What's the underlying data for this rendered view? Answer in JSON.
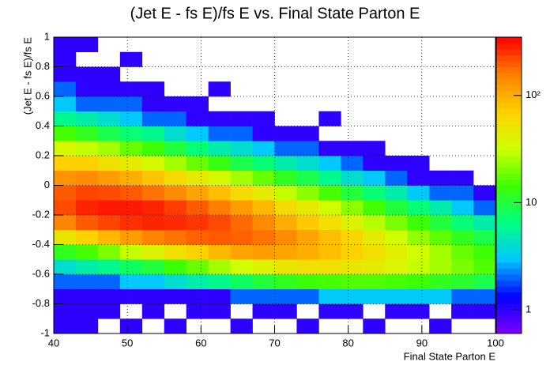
{
  "chart_data": {
    "type": "heatmap",
    "title": "(Jet E - fs E)/fs E vs. Final State Parton E",
    "x_label": "Final State Parton E",
    "y_label": "(Jet E - fs E)/fs E",
    "xbins": [
      40,
      43,
      46,
      49,
      52,
      55,
      58,
      61,
      64,
      67,
      70,
      73,
      76,
      79,
      82,
      85,
      88,
      91,
      94,
      97,
      100
    ],
    "ybins": [
      -1,
      -0.9,
      -0.8,
      -0.7,
      -0.6,
      -0.5,
      -0.4,
      -0.3,
      -0.2,
      -0.1,
      0,
      0.1,
      0.2,
      0.3,
      0.4,
      0.5,
      0.6,
      0.7,
      0.8,
      0.9,
      1
    ],
    "z": [
      [
        1,
        1,
        1,
        2,
        4,
        12,
        50,
        150,
        220,
        200,
        130,
        70,
        35,
        15,
        6,
        3,
        2,
        1,
        1,
        1
      ],
      [
        1,
        1,
        1,
        2,
        5,
        15,
        70,
        200,
        280,
        230,
        140,
        70,
        30,
        12,
        5,
        2,
        1,
        1,
        0,
        1
      ],
      [
        0,
        1,
        1,
        2,
        6,
        20,
        90,
        230,
        300,
        220,
        120,
        55,
        25,
        9,
        4,
        2,
        1,
        1,
        0,
        0
      ],
      [
        1,
        0,
        1,
        3,
        8,
        30,
        120,
        260,
        300,
        200,
        100,
        45,
        18,
        7,
        3,
        2,
        1,
        0,
        1,
        0
      ],
      [
        0,
        1,
        1,
        3,
        10,
        40,
        150,
        280,
        280,
        170,
        80,
        35,
        14,
        6,
        2,
        1,
        1,
        0,
        0,
        0
      ],
      [
        1,
        0,
        1,
        4,
        14,
        55,
        170,
        270,
        240,
        140,
        60,
        25,
        10,
        4,
        2,
        1,
        0,
        0,
        0,
        0
      ],
      [
        0,
        1,
        1,
        5,
        18,
        70,
        190,
        250,
        200,
        110,
        45,
        18,
        7,
        3,
        1,
        1,
        0,
        0,
        0,
        0
      ],
      [
        0,
        1,
        1,
        6,
        25,
        90,
        200,
        220,
        160,
        85,
        35,
        13,
        5,
        2,
        1,
        0,
        1,
        0,
        0,
        0
      ],
      [
        1,
        0,
        2,
        8,
        32,
        110,
        190,
        180,
        120,
        60,
        25,
        9,
        4,
        2,
        1,
        0,
        0,
        0,
        0,
        0
      ],
      [
        0,
        1,
        2,
        10,
        40,
        120,
        170,
        140,
        90,
        45,
        18,
        7,
        3,
        1,
        1,
        0,
        0,
        0,
        0,
        0
      ],
      [
        0,
        1,
        2,
        12,
        50,
        110,
        140,
        100,
        60,
        30,
        12,
        5,
        2,
        1,
        0,
        0,
        0,
        0,
        0,
        0
      ],
      [
        1,
        0,
        2,
        14,
        55,
        100,
        110,
        75,
        45,
        22,
        9,
        4,
        2,
        1,
        0,
        0,
        0,
        0,
        0,
        0
      ],
      [
        0,
        1,
        3,
        15,
        55,
        85,
        85,
        55,
        32,
        15,
        6,
        3,
        1,
        0,
        1,
        0,
        0,
        0,
        0,
        0
      ],
      [
        0,
        1,
        3,
        16,
        50,
        70,
        65,
        40,
        22,
        10,
        4,
        2,
        1,
        0,
        0,
        0,
        0,
        0,
        0,
        0
      ],
      [
        1,
        0,
        3,
        16,
        45,
        55,
        45,
        28,
        15,
        7,
        3,
        1,
        1,
        0,
        0,
        0,
        0,
        0,
        0,
        0
      ],
      [
        0,
        1,
        3,
        15,
        38,
        42,
        32,
        20,
        10,
        5,
        2,
        1,
        0,
        0,
        0,
        0,
        0,
        0,
        0,
        0
      ],
      [
        0,
        1,
        3,
        14,
        30,
        32,
        23,
        14,
        7,
        3,
        1,
        1,
        0,
        0,
        0,
        0,
        0,
        0,
        0,
        0
      ],
      [
        1,
        0,
        3,
        12,
        25,
        25,
        17,
        10,
        5,
        2,
        1,
        0,
        0,
        0,
        0,
        0,
        0,
        0,
        0,
        0
      ],
      [
        0,
        1,
        2,
        11,
        20,
        18,
        12,
        7,
        3,
        2,
        1,
        0,
        0,
        0,
        0,
        0,
        0,
        0,
        0,
        0
      ],
      [
        0,
        1,
        2,
        9,
        16,
        14,
        9,
        5,
        2,
        1,
        0,
        0,
        0,
        0,
        0,
        0,
        0,
        0,
        0,
        0
      ]
    ],
    "xlim": [
      40,
      100
    ],
    "xticks": [
      40,
      50,
      60,
      70,
      80,
      90,
      100
    ],
    "ylim": [
      -1,
      1
    ],
    "yticks": [
      -1,
      -0.8,
      -0.6,
      -0.4,
      -0.2,
      0,
      0.2,
      0.4,
      0.6,
      0.8,
      1
    ],
    "zlim": [
      0.6,
      350
    ],
    "zlog": true,
    "zticks": [
      1,
      10,
      {
        "value": 100,
        "label": "10²"
      }
    ],
    "grid": true,
    "palette": [
      "#7f00ff",
      "#0000ff",
      "#00c8ff",
      "#00ff80",
      "#40ff00",
      "#d0ff00",
      "#ffd000",
      "#ff8000",
      "#ff0000"
    ]
  }
}
